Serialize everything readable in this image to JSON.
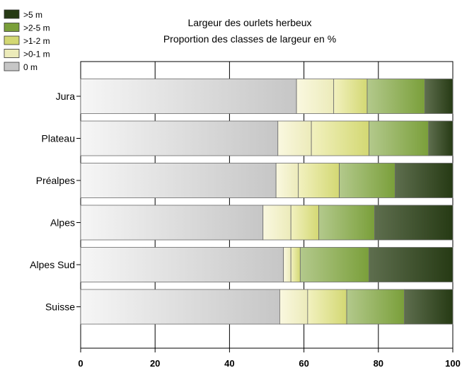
{
  "chart_data": {
    "type": "bar",
    "orientation": "horizontal",
    "stacked": true,
    "title": "Largeur des ourlets herbeux",
    "subtitle": "Proportion des classes de largeur en %",
    "xlabel": "",
    "ylabel": "",
    "xlim": [
      0,
      100
    ],
    "xticks": [
      "0",
      "20",
      "40",
      "60",
      "80",
      "100"
    ],
    "grid": true,
    "legend_position": "top-left",
    "categories": [
      "Jura",
      "Plateau",
      "Préalpes",
      "Alpes",
      "Alpes Sud",
      "Suisse"
    ],
    "series": [
      {
        "name": "0 m",
        "color_light": "#f6f6f6",
        "color_dark": "#c6c6c6",
        "values": [
          58,
          53,
          52.5,
          49,
          54.5,
          53.5
        ]
      },
      {
        "name": ">0-1 m",
        "color_light": "#faf8e0",
        "color_dark": "#ecebba",
        "values": [
          10,
          9,
          6,
          7.5,
          2,
          7.5
        ]
      },
      {
        "name": ">1-2 m",
        "color_light": "#f2f1bf",
        "color_dark": "#d3d873",
        "values": [
          9,
          15.5,
          11,
          7.5,
          2.5,
          10.5
        ]
      },
      {
        "name": ">2-5 m",
        "color_light": "#b3c98c",
        "color_dark": "#7a9f3a",
        "values": [
          15.5,
          16,
          15,
          15,
          18.5,
          15.5
        ]
      },
      {
        "name": ">5 m",
        "color_light": "#5e6e4e",
        "color_dark": "#263a14",
        "values": [
          7.5,
          6.5,
          15.5,
          21,
          22.5,
          13
        ]
      }
    ]
  }
}
